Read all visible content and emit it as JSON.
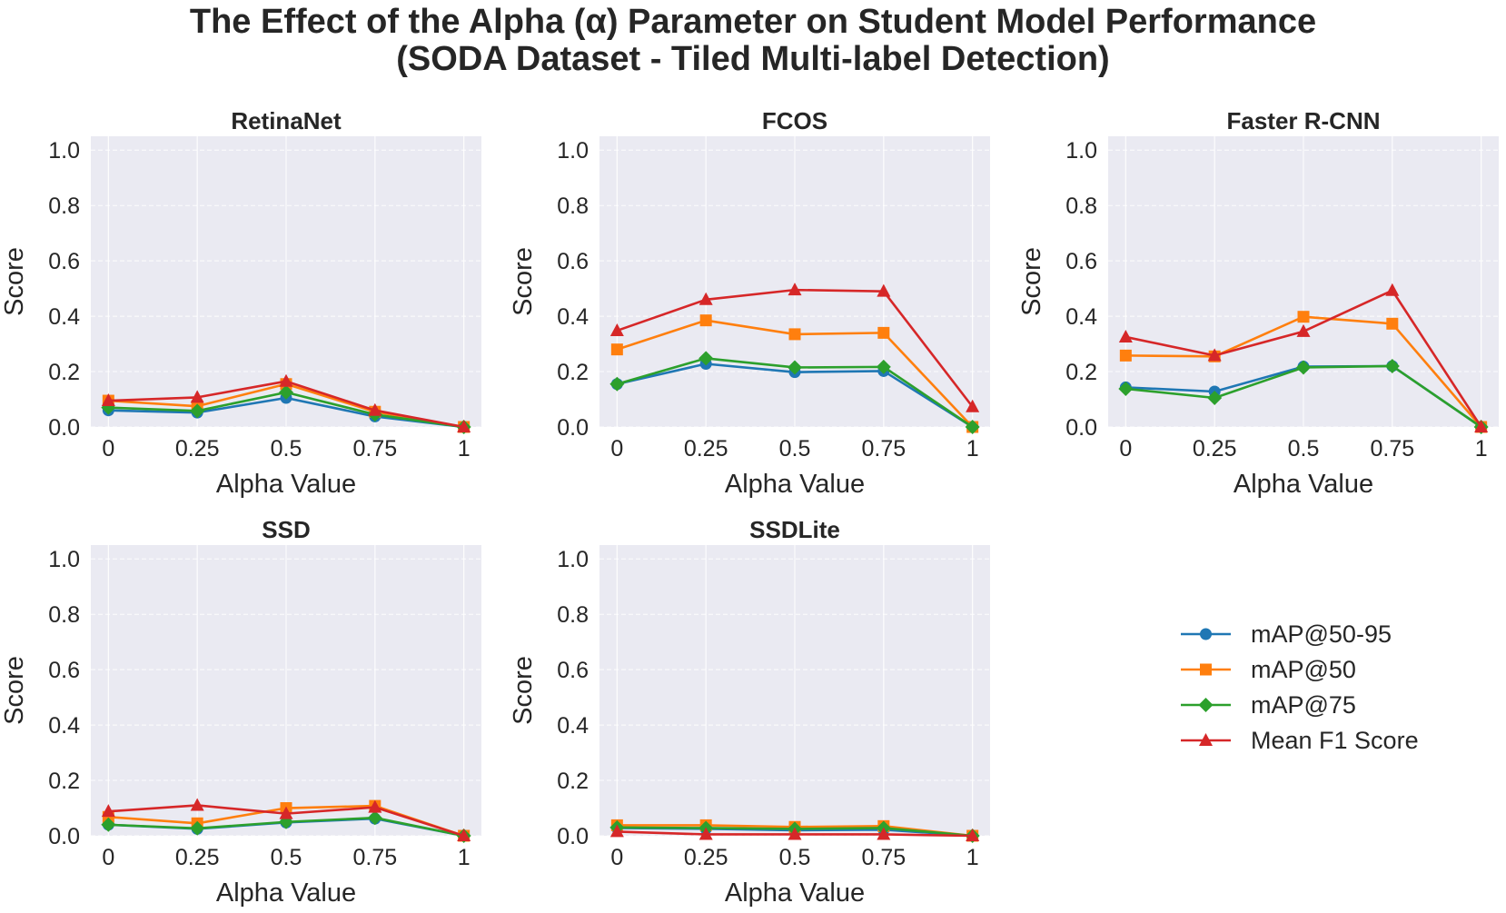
{
  "figure": {
    "title_line1": "The Effect of the Alpha (α) Parameter on Student Model Performance",
    "title_line2": "(SODA Dataset - Tiled Multi-label Detection)"
  },
  "colors": {
    "background": "#ffffff",
    "plot_background": "#eaeaf2",
    "grid": "#ffffff",
    "text": "#262626"
  },
  "legend": {
    "placement": "lower-right (empty sixth panel)",
    "items": [
      {
        "label": "mAP@50-95",
        "color": "#1f77b4",
        "marker": "circle"
      },
      {
        "label": "mAP@50",
        "color": "#ff7f0e",
        "marker": "square"
      },
      {
        "label": "mAP@75",
        "color": "#2ca02c",
        "marker": "diamond"
      },
      {
        "label": "Mean F1 Score",
        "color": "#d62728",
        "marker": "triangle"
      }
    ]
  },
  "chart_data": [
    {
      "type": "line",
      "title": "RetinaNet",
      "xlabel": "Alpha Value",
      "ylabel": "Score",
      "categories": [
        "0",
        "0.25",
        "0.5",
        "0.75",
        "1"
      ],
      "yticks": [
        "0.0",
        "0.2",
        "0.4",
        "0.6",
        "0.8",
        "1.0"
      ],
      "ylim": [
        0,
        1.05
      ],
      "grid": true,
      "series": [
        {
          "name": "mAP@50-95",
          "values": [
            0.06,
            0.052,
            0.105,
            0.038,
            0.0
          ]
        },
        {
          "name": "mAP@50",
          "values": [
            0.095,
            0.075,
            0.155,
            0.055,
            0.0
          ]
        },
        {
          "name": "mAP@75",
          "values": [
            0.07,
            0.058,
            0.125,
            0.045,
            0.0
          ]
        },
        {
          "name": "Mean F1 Score",
          "values": [
            0.095,
            0.107,
            0.165,
            0.06,
            0.0
          ]
        }
      ]
    },
    {
      "type": "line",
      "title": "FCOS",
      "xlabel": "Alpha Value",
      "ylabel": "Score",
      "categories": [
        "0",
        "0.25",
        "0.5",
        "0.75",
        "1"
      ],
      "yticks": [
        "0.0",
        "0.2",
        "0.4",
        "0.6",
        "0.8",
        "1.0"
      ],
      "ylim": [
        0,
        1.05
      ],
      "grid": true,
      "series": [
        {
          "name": "mAP@50-95",
          "values": [
            0.155,
            0.228,
            0.198,
            0.202,
            0.0
          ]
        },
        {
          "name": "mAP@50",
          "values": [
            0.28,
            0.385,
            0.335,
            0.34,
            0.0
          ]
        },
        {
          "name": "mAP@75",
          "values": [
            0.155,
            0.248,
            0.215,
            0.217,
            0.0
          ]
        },
        {
          "name": "Mean F1 Score",
          "values": [
            0.348,
            0.46,
            0.495,
            0.49,
            0.073
          ]
        }
      ]
    },
    {
      "type": "line",
      "title": "Faster R-CNN",
      "xlabel": "Alpha Value",
      "ylabel": "Score",
      "categories": [
        "0",
        "0.25",
        "0.5",
        "0.75",
        "1"
      ],
      "yticks": [
        "0.0",
        "0.2",
        "0.4",
        "0.6",
        "0.8",
        "1.0"
      ],
      "ylim": [
        0,
        1.05
      ],
      "grid": true,
      "series": [
        {
          "name": "mAP@50-95",
          "values": [
            0.143,
            0.128,
            0.218,
            0.22,
            0.0
          ]
        },
        {
          "name": "mAP@50",
          "values": [
            0.258,
            0.255,
            0.398,
            0.373,
            0.0
          ]
        },
        {
          "name": "mAP@75",
          "values": [
            0.138,
            0.105,
            0.215,
            0.22,
            0.0
          ]
        },
        {
          "name": "Mean F1 Score",
          "values": [
            0.325,
            0.258,
            0.345,
            0.493,
            0.0
          ]
        }
      ]
    },
    {
      "type": "line",
      "title": "SSD",
      "xlabel": "Alpha Value",
      "ylabel": "Score",
      "categories": [
        "0",
        "0.25",
        "0.5",
        "0.75",
        "1"
      ],
      "yticks": [
        "0.0",
        "0.2",
        "0.4",
        "0.6",
        "0.8",
        "1.0"
      ],
      "ylim": [
        0,
        1.05
      ],
      "grid": true,
      "series": [
        {
          "name": "mAP@50-95",
          "values": [
            0.04,
            0.025,
            0.048,
            0.062,
            0.0
          ]
        },
        {
          "name": "mAP@50",
          "values": [
            0.068,
            0.045,
            0.1,
            0.108,
            0.0
          ]
        },
        {
          "name": "mAP@75",
          "values": [
            0.04,
            0.027,
            0.05,
            0.065,
            0.0
          ]
        },
        {
          "name": "Mean F1 Score",
          "values": [
            0.088,
            0.11,
            0.08,
            0.103,
            0.0
          ]
        }
      ]
    },
    {
      "type": "line",
      "title": "SSDLite",
      "xlabel": "Alpha Value",
      "ylabel": "Score",
      "categories": [
        "0",
        "0.25",
        "0.5",
        "0.75",
        "1"
      ],
      "yticks": [
        "0.0",
        "0.2",
        "0.4",
        "0.6",
        "0.8",
        "1.0"
      ],
      "ylim": [
        0,
        1.05
      ],
      "grid": true,
      "series": [
        {
          "name": "mAP@50-95",
          "values": [
            0.028,
            0.025,
            0.02,
            0.022,
            0.0
          ]
        },
        {
          "name": "mAP@50",
          "values": [
            0.038,
            0.038,
            0.032,
            0.035,
            0.0
          ]
        },
        {
          "name": "mAP@75",
          "values": [
            0.03,
            0.028,
            0.025,
            0.028,
            0.0
          ]
        },
        {
          "name": "Mean F1 Score",
          "values": [
            0.015,
            0.005,
            0.005,
            0.005,
            0.0
          ]
        }
      ]
    }
  ]
}
